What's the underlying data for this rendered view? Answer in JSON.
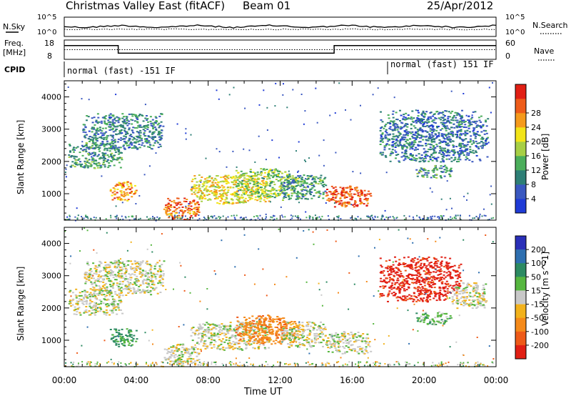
{
  "header": {
    "title": "Christmas Valley East (fitACF)",
    "beam": "Beam 01",
    "date": "25/Apr/2012"
  },
  "strip": {
    "nsky_label": "N.Sky",
    "nsky_ticks": [
      "10^5",
      "10^0"
    ],
    "nsearch_label": "N.Search",
    "nsearch_ticks": [
      "10^5",
      "10^0"
    ],
    "freq_label_1": "Freq.",
    "freq_label_2": "[MHz]",
    "freq_ticks": [
      "18",
      "8"
    ],
    "nave_label": "Nave",
    "nave_ticks": [
      "60",
      "0"
    ],
    "cpid_label": "CPID",
    "cpid_segments": [
      {
        "label": "normal (fast) -151 IF",
        "start_hour": 0
      },
      {
        "label": "normal (fast) 151 IF",
        "start_hour": 18
      }
    ]
  },
  "axes": {
    "xlabel": "Time UT",
    "xticks": [
      "00:00",
      "04:00",
      "08:00",
      "12:00",
      "16:00",
      "20:00",
      "00:00"
    ],
    "xrange_hours": [
      0,
      24
    ],
    "ylabel": "Slant Range [km]",
    "yticks": [
      "1000",
      "2000",
      "3000",
      "4000"
    ],
    "yrange_km": [
      180,
      4500
    ]
  },
  "colorbars": {
    "power": {
      "label": "Power [dB]",
      "ticks": [
        "4",
        "8",
        "12",
        "16",
        "20",
        "24",
        "28"
      ],
      "colors": [
        "#1f3bd6",
        "#3a58c0",
        "#2e7f76",
        "#4bae5b",
        "#a7cf45",
        "#f2e418",
        "#f59a1c",
        "#ee5c1a",
        "#e11f14"
      ]
    },
    "velocity": {
      "label": "Velocity [m s^-1]",
      "ticks": [
        "200",
        "100",
        "50",
        "15",
        "-15",
        "-50",
        "-100",
        "-200"
      ],
      "colors": [
        "#2a2fb8",
        "#2e6fb0",
        "#2c8a62",
        "#56b63f",
        "#c8c8c8",
        "#f2b21c",
        "#f58a1a",
        "#ee5a18",
        "#e11f14"
      ]
    }
  },
  "chart_data": [
    {
      "type": "heatmap",
      "title": "Power",
      "xlabel": "Time UT",
      "ylabel": "Slant Range [km]",
      "xlim": [
        0,
        24
      ],
      "ylim": [
        180,
        4500
      ],
      "value_label": "Power [dB]",
      "value_range": [
        0,
        30
      ],
      "features": [
        {
          "t0": 0.2,
          "t1": 3.2,
          "r0": 1800,
          "r1": 2600,
          "value": 10
        },
        {
          "t0": 1.0,
          "t1": 5.5,
          "r0": 2400,
          "r1": 3500,
          "value": 8
        },
        {
          "t0": 2.5,
          "t1": 4.0,
          "r0": 800,
          "r1": 1400,
          "value": 22
        },
        {
          "t0": 5.5,
          "t1": 7.5,
          "r0": 200,
          "r1": 900,
          "value": 24
        },
        {
          "t0": 7.0,
          "t1": 11.5,
          "r0": 700,
          "r1": 1600,
          "value": 18
        },
        {
          "t0": 9.5,
          "t1": 13.0,
          "r0": 900,
          "r1": 1800,
          "value": 14
        },
        {
          "t0": 12.0,
          "t1": 14.5,
          "r0": 800,
          "r1": 1600,
          "value": 10
        },
        {
          "t0": 14.5,
          "t1": 17.0,
          "r0": 600,
          "r1": 1300,
          "value": 26
        },
        {
          "t0": 17.5,
          "t1": 23.5,
          "r0": 2000,
          "r1": 3600,
          "value": 7
        },
        {
          "t0": 19.5,
          "t1": 21.5,
          "r0": 1500,
          "r1": 1900,
          "value": 10
        }
      ]
    },
    {
      "type": "heatmap",
      "title": "Velocity",
      "xlabel": "Time UT",
      "ylabel": "Slant Range [km]",
      "xlim": [
        0,
        24
      ],
      "ylim": [
        180,
        4500
      ],
      "value_label": "Velocity [m s^-1]",
      "value_range": [
        -200,
        200
      ],
      "features": [
        {
          "t0": 0.2,
          "t1": 3.2,
          "r0": 1800,
          "r1": 2600,
          "value": 0
        },
        {
          "t0": 1.0,
          "t1": 5.5,
          "r0": 2400,
          "r1": 3500,
          "value": 0
        },
        {
          "t0": 2.5,
          "t1": 4.0,
          "r0": 800,
          "r1": 1400,
          "value": 60
        },
        {
          "t0": 5.5,
          "t1": 7.5,
          "r0": 200,
          "r1": 900,
          "value": 0
        },
        {
          "t0": 7.0,
          "t1": 11.5,
          "r0": 700,
          "r1": 1600,
          "value": 0
        },
        {
          "t0": 9.5,
          "t1": 13.0,
          "r0": 900,
          "r1": 1800,
          "value": -80
        },
        {
          "t0": 12.0,
          "t1": 14.5,
          "r0": 800,
          "r1": 1600,
          "value": 0
        },
        {
          "t0": 14.5,
          "t1": 17.0,
          "r0": 600,
          "r1": 1300,
          "value": 0
        },
        {
          "t0": 17.5,
          "t1": 22.0,
          "r0": 2200,
          "r1": 3600,
          "value": -220
        },
        {
          "t0": 21.5,
          "t1": 23.5,
          "r0": 2000,
          "r1": 2800,
          "value": 0
        },
        {
          "t0": 19.5,
          "t1": 21.5,
          "r0": 1500,
          "r1": 1900,
          "value": 30
        }
      ]
    }
  ]
}
